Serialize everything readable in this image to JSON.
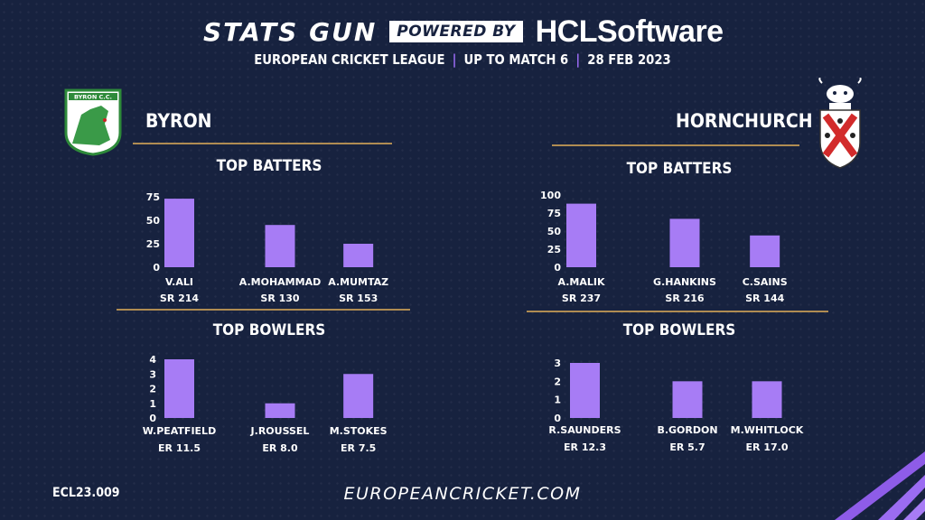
{
  "header": {
    "brand": "STATS GUN",
    "powered_by": "POWERED BY",
    "sponsor_hcl": "HCL",
    "sponsor_software": "Software",
    "league": "EUROPEAN CRICKET LEAGUE",
    "match": "UP TO MATCH  6",
    "date": "28 FEB 2023"
  },
  "teams": {
    "left": {
      "name": "BYRON",
      "logo_text": "BYRON C.C."
    },
    "right": {
      "name": "HORNCHURCH"
    }
  },
  "footer": {
    "code": "ECL23.009",
    "url": "EUROPEANCRICKET.COM"
  },
  "colors": {
    "bar": "#a77cf5",
    "background": "#17223f",
    "divider": "#b08c52",
    "accent": "#9c6cf6"
  },
  "chart_data": [
    {
      "type": "bar",
      "team": "BYRON",
      "title": "TOP BATTERS",
      "categories": [
        "V.ALI",
        "A.MOHAMMAD",
        "A.MUMTAZ"
      ],
      "values": [
        73,
        45,
        25
      ],
      "sublabels": [
        "SR 214",
        "SR 130",
        "SR 153"
      ],
      "yticks": [
        0,
        25,
        50,
        75
      ],
      "ylim": [
        0,
        75
      ]
    },
    {
      "type": "bar",
      "team": "HORNCHURCH",
      "title": "TOP BATTERS",
      "categories": [
        "A.MALIK",
        "G.HANKINS",
        "C.SAINS"
      ],
      "values": [
        88,
        67,
        44
      ],
      "sublabels": [
        "SR 237",
        "SR 216",
        "SR 144"
      ],
      "yticks": [
        0,
        25,
        50,
        75,
        100
      ],
      "ylim": [
        0,
        100
      ]
    },
    {
      "type": "bar",
      "team": "BYRON",
      "title": "TOP BOWLERS",
      "categories": [
        "W.PEATFIELD",
        "J.ROUSSEL",
        "M.STOKES"
      ],
      "values": [
        4,
        1,
        3
      ],
      "sublabels": [
        "ER 11.5",
        "ER 8.0",
        "ER 7.5"
      ],
      "yticks": [
        0,
        1,
        2,
        3,
        4
      ],
      "ylim": [
        0,
        4
      ]
    },
    {
      "type": "bar",
      "team": "HORNCHURCH",
      "title": "TOP BOWLERS",
      "categories": [
        "R.SAUNDERS",
        "B.GORDON",
        "M.WHITLOCK"
      ],
      "values": [
        3,
        2,
        2
      ],
      "sublabels": [
        "ER 12.3",
        "ER 5.7",
        "ER 17.0"
      ],
      "yticks": [
        0,
        1,
        2,
        3
      ],
      "ylim": [
        0,
        3
      ]
    }
  ]
}
